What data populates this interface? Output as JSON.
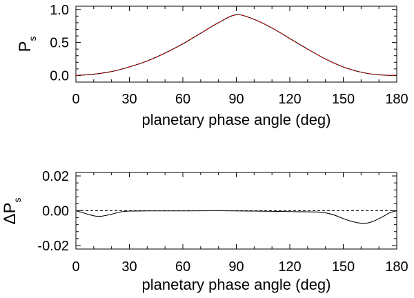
{
  "chart_data": [
    {
      "type": "line",
      "ylabel_main": "P",
      "ylabel_sub": "s",
      "xlabel": "planetary phase angle (deg)",
      "xlim": [
        0,
        180
      ],
      "ylim": [
        -0.1,
        1.05
      ],
      "xticks": [
        0,
        30,
        60,
        90,
        120,
        150,
        180
      ],
      "xtick_labels": [
        "0",
        "30",
        "60",
        "90",
        "120",
        "150",
        "180"
      ],
      "yticks": [
        0.0,
        0.5,
        1.0
      ],
      "ytick_labels": [
        "0.0",
        "0.5",
        "1.0"
      ],
      "series": [
        {
          "name": "black-curve",
          "color": "#000000",
          "style": "solid",
          "x": [
            0,
            10,
            20,
            30,
            40,
            50,
            60,
            70,
            80,
            90,
            100,
            110,
            120,
            130,
            140,
            150,
            160,
            170,
            180
          ],
          "y": [
            0.0,
            0.02,
            0.06,
            0.13,
            0.22,
            0.34,
            0.48,
            0.64,
            0.8,
            0.92,
            0.85,
            0.72,
            0.56,
            0.4,
            0.25,
            0.13,
            0.05,
            0.01,
            0.0
          ]
        },
        {
          "name": "red-dashed-curve",
          "color": "#cc0000",
          "style": "dashed",
          "x": [
            0,
            10,
            20,
            30,
            40,
            50,
            60,
            70,
            80,
            90,
            100,
            110,
            120,
            130,
            140,
            150,
            160,
            170,
            180
          ],
          "y": [
            0.0,
            0.02,
            0.06,
            0.13,
            0.22,
            0.34,
            0.48,
            0.64,
            0.8,
            0.92,
            0.85,
            0.72,
            0.56,
            0.4,
            0.25,
            0.13,
            0.05,
            0.01,
            0.0
          ]
        }
      ]
    },
    {
      "type": "line",
      "ylabel_main": "ΔP",
      "ylabel_sub": "s",
      "xlabel": "planetary phase angle (deg)",
      "xlim": [
        0,
        180
      ],
      "ylim": [
        -0.022,
        0.022
      ],
      "xticks": [
        0,
        30,
        60,
        90,
        120,
        150,
        180
      ],
      "xtick_labels": [
        "0",
        "30",
        "60",
        "90",
        "120",
        "150",
        "180"
      ],
      "yticks": [
        -0.02,
        0.0,
        0.02
      ],
      "ytick_labels": [
        "-0.02",
        "0.00",
        "0.02"
      ],
      "series": [
        {
          "name": "difference-curve",
          "color": "#000000",
          "style": "solid",
          "x": [
            0,
            5,
            10,
            14,
            20,
            25,
            30,
            40,
            60,
            80,
            100,
            120,
            135,
            140,
            145,
            150,
            155,
            160,
            163,
            167,
            172,
            176,
            180
          ],
          "y": [
            0.0,
            -0.0015,
            -0.0029,
            -0.0032,
            -0.002,
            -0.0007,
            -0.0002,
            -0.0001,
            -0.0001,
            0.0,
            -0.0002,
            -0.0005,
            -0.0007,
            -0.0012,
            -0.0025,
            -0.0045,
            -0.0062,
            -0.0072,
            -0.0072,
            -0.006,
            -0.0035,
            -0.0012,
            0.0
          ]
        },
        {
          "name": "zero-reference",
          "color": "#000000",
          "style": "dashed",
          "x": [
            0,
            180
          ],
          "y": [
            0.0,
            0.0
          ]
        }
      ]
    }
  ]
}
